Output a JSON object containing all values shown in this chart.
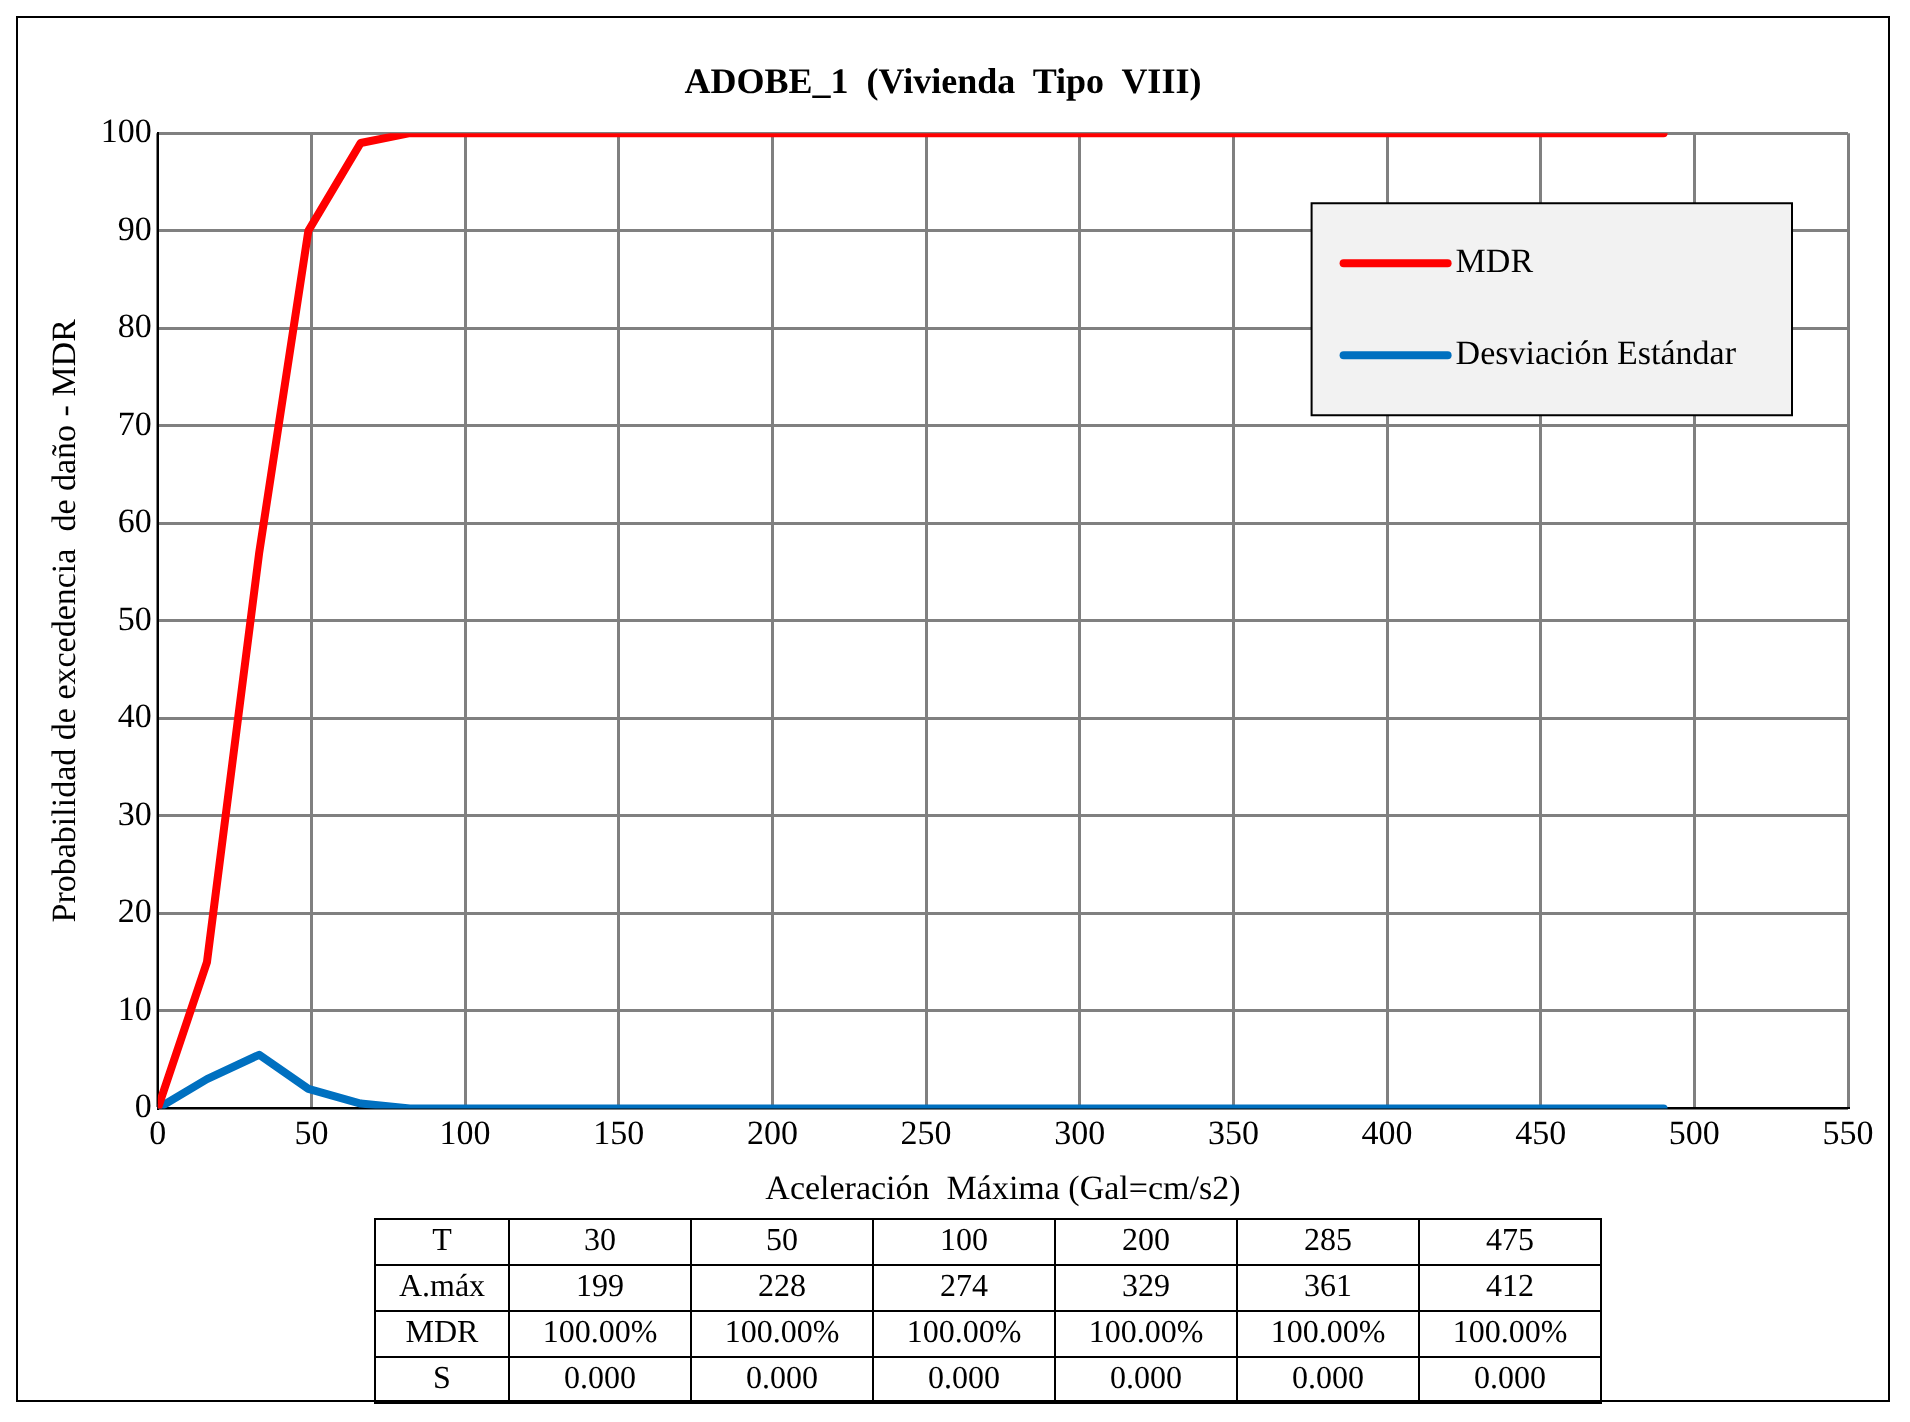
{
  "chart_data": {
    "type": "line",
    "title": "ADOBE_1  (Vivienda  Tipo  VIII)",
    "xlabel": "Aceleración  Máxima (Gal=cm/s2)",
    "ylabel": "Probabilidad de excedencia  de daño - MDR",
    "x": [
      0,
      16,
      33,
      49,
      66,
      82,
      490
    ],
    "series": [
      {
        "name": "MDR",
        "color": "#ff0000",
        "values": [
          0,
          15,
          57,
          90,
          99,
          100,
          100
        ]
      },
      {
        "name": "Desviación Estándar",
        "color": "#0070c0",
        "values": [
          0,
          3,
          5.5,
          2,
          0.5,
          0,
          0
        ]
      }
    ],
    "xlim": [
      0,
      550
    ],
    "xticks": [
      0,
      50,
      100,
      150,
      200,
      250,
      300,
      350,
      400,
      450,
      500,
      550
    ],
    "ylim": [
      0,
      100
    ],
    "yticks": [
      0,
      10,
      20,
      30,
      40,
      50,
      60,
      70,
      80,
      90,
      100
    ],
    "grid": true,
    "legend": "top right",
    "marker": "none",
    "line_style": "solid",
    "annotations": [
      "T",
      "30",
      "50",
      "100",
      "200",
      "285",
      "475",
      "A.máx",
      "199",
      "228",
      "274",
      "329",
      "361",
      "412",
      "MDR",
      "100.00%",
      "100.00%",
      "100.00%",
      "100.00%",
      "100.00%",
      "100.00%",
      "S",
      "0.000",
      "0.000",
      "0.000",
      "0.000",
      "0.000",
      "0.000"
    ]
  }
}
